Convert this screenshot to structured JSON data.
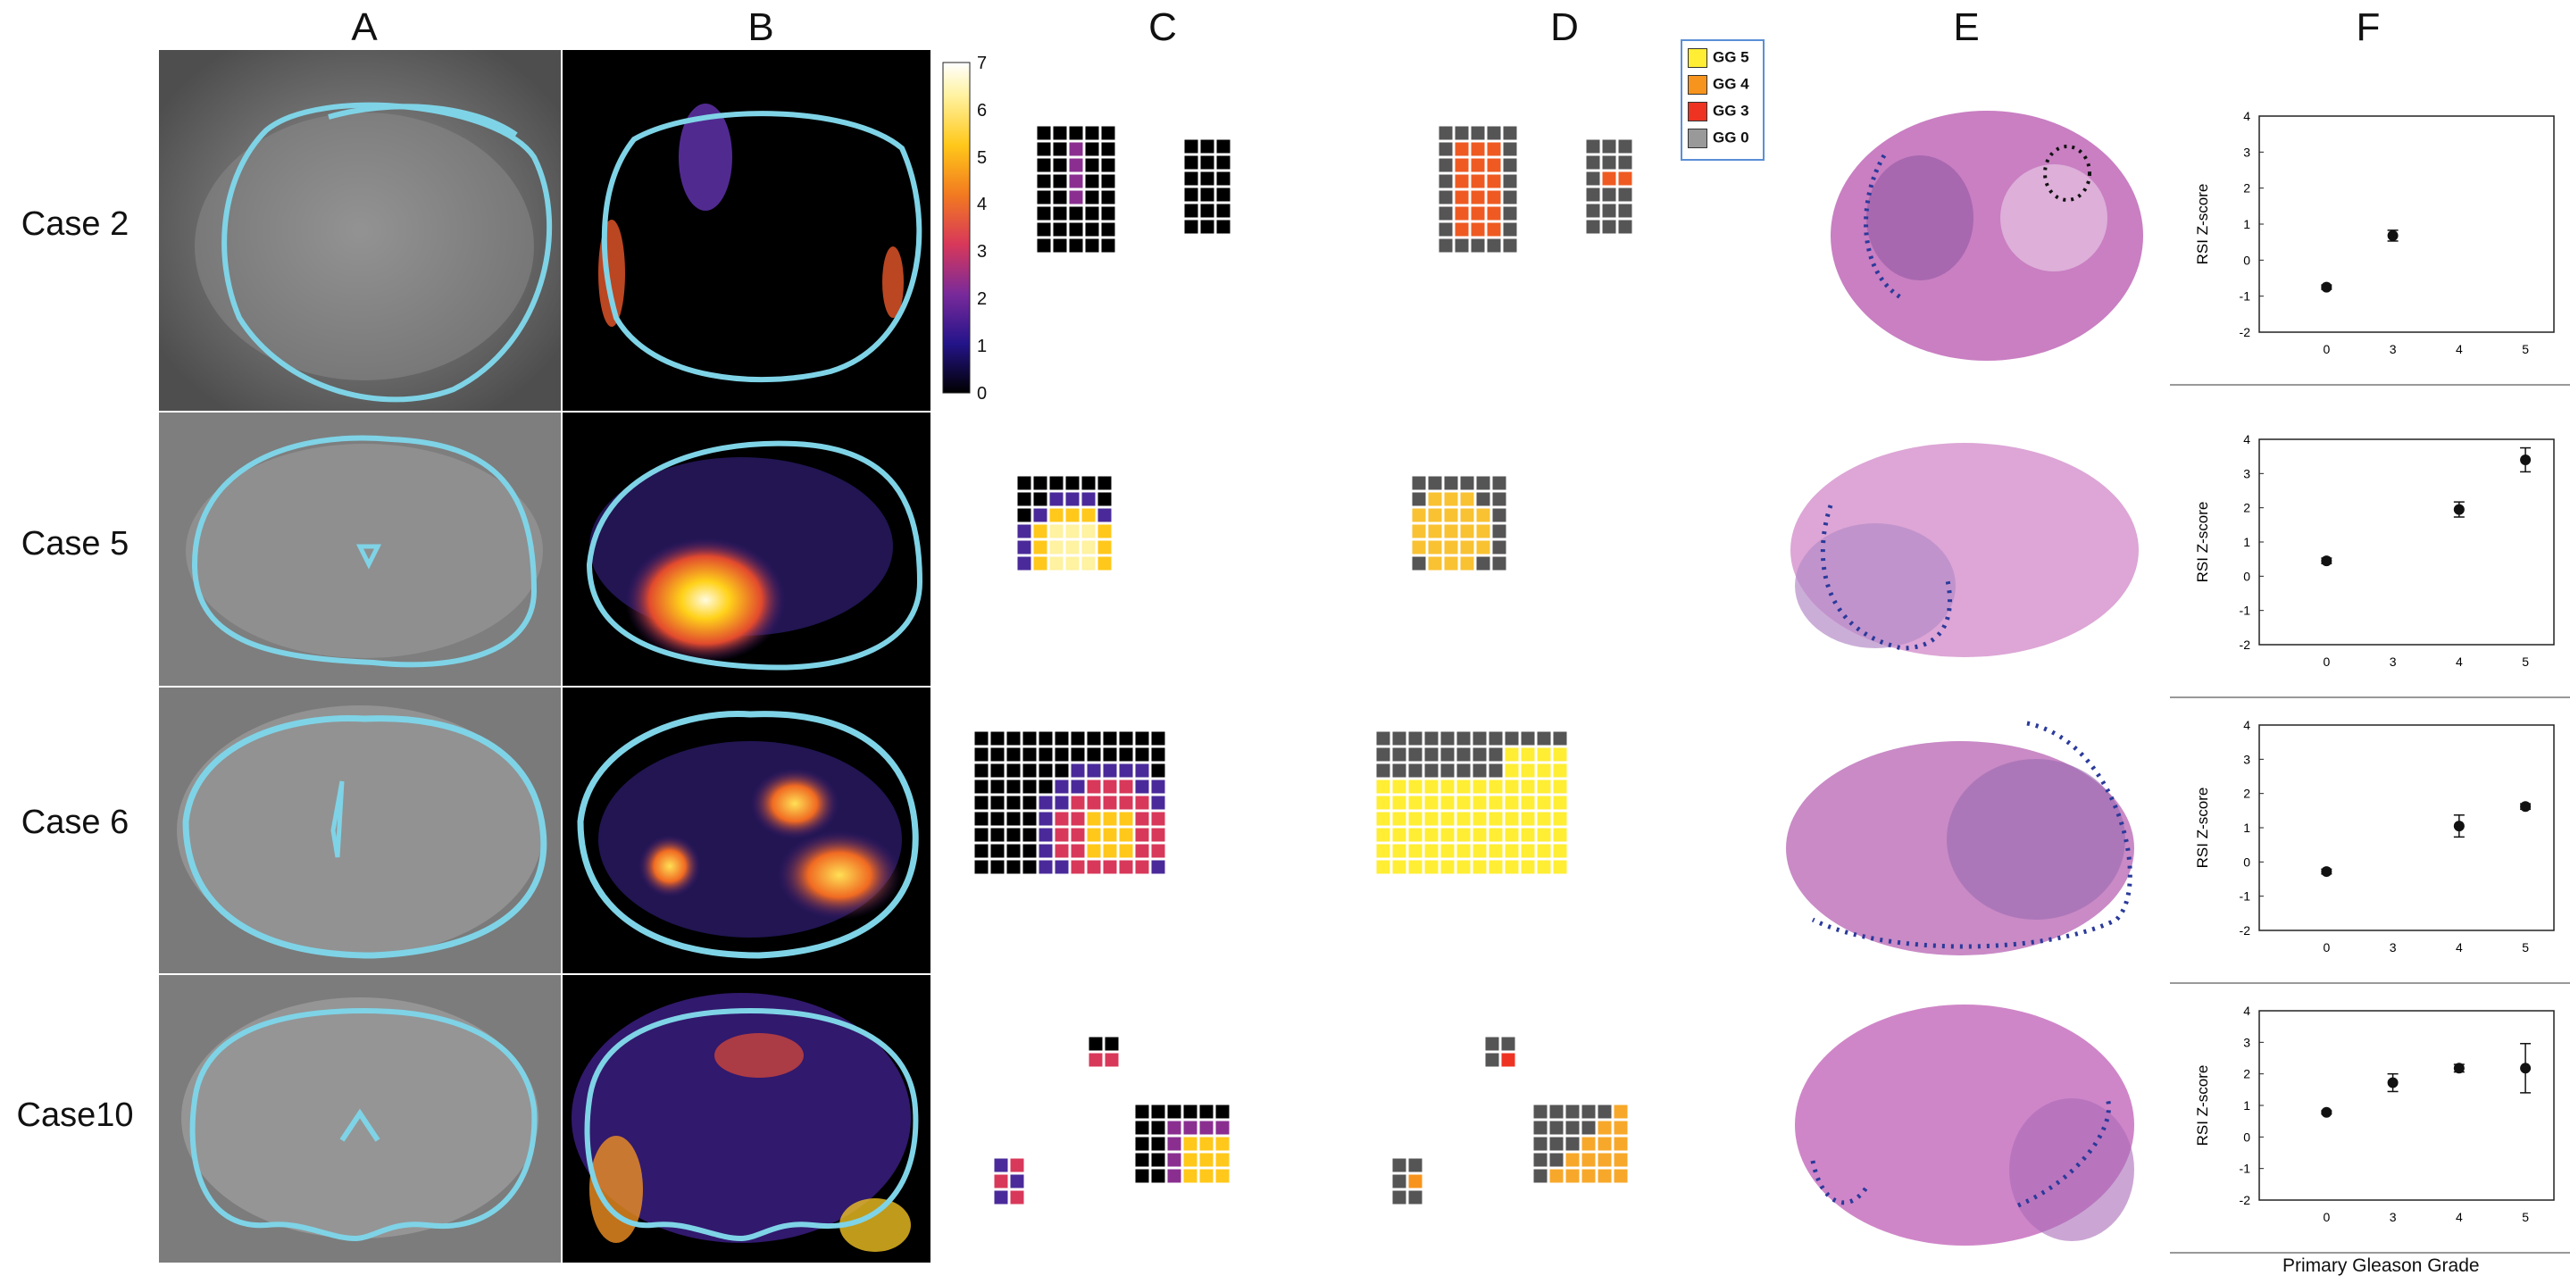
{
  "column_labels": [
    "A",
    "B",
    "C",
    "D",
    "E",
    "F"
  ],
  "rows": [
    {
      "label": "Case 2"
    },
    {
      "label": "Case 5"
    },
    {
      "label": "Case 6"
    },
    {
      "label": "Case10"
    }
  ],
  "colorbar": {
    "ticks": [
      "7",
      "6",
      "5",
      "4",
      "3",
      "2",
      "1",
      "0"
    ],
    "min": 0,
    "max": 7
  },
  "legend": {
    "items": [
      {
        "label": "GG 5",
        "color": "#ffee33"
      },
      {
        "label": "GG 4",
        "color": "#f7941d"
      },
      {
        "label": "GG 3",
        "color": "#ee3322"
      },
      {
        "label": "GG 0",
        "color": "#999999"
      }
    ]
  },
  "colors": {
    "contour": "#7fd3e6",
    "grid_cell_empty": "#555555",
    "tissue_pink": "#d98ad0",
    "tumor_dots": "#2a3a9a"
  },
  "chart_data": [
    {
      "type": "scatter",
      "case": "Case 2",
      "ylabel": "RSI Z-score",
      "xlabel": "",
      "ylim": [
        -2,
        4
      ],
      "xticks": [
        "0",
        "3",
        "4",
        "5"
      ],
      "points": [
        {
          "x": "0",
          "y": -0.75,
          "err": 0.06
        },
        {
          "x": "3",
          "y": 0.68,
          "err": 0.15
        }
      ]
    },
    {
      "type": "scatter",
      "case": "Case 5",
      "ylabel": "RSI Z-score",
      "xlabel": "",
      "ylim": [
        -2,
        4
      ],
      "xticks": [
        "0",
        "3",
        "4",
        "5"
      ],
      "points": [
        {
          "x": "0",
          "y": 0.45,
          "err": 0.08
        },
        {
          "x": "4",
          "y": 1.95,
          "err": 0.22
        },
        {
          "x": "5",
          "y": 3.4,
          "err": 0.35
        }
      ]
    },
    {
      "type": "scatter",
      "case": "Case 6",
      "ylabel": "RSI Z-score",
      "xlabel": "",
      "ylim": [
        -2,
        4
      ],
      "xticks": [
        "0",
        "3",
        "4",
        "5"
      ],
      "points": [
        {
          "x": "0",
          "y": -0.28,
          "err": 0.07
        },
        {
          "x": "4",
          "y": 1.05,
          "err": 0.32
        },
        {
          "x": "5",
          "y": 1.62,
          "err": 0.08
        }
      ]
    },
    {
      "type": "scatter",
      "case": "Case10",
      "ylabel": "RSI Z-score",
      "xlabel": "Primary Gleason Grade",
      "ylim": [
        -2,
        4
      ],
      "xticks": [
        "0",
        "3",
        "4",
        "5"
      ],
      "points": [
        {
          "x": "0",
          "y": 0.78,
          "err": 0.05
        },
        {
          "x": "3",
          "y": 1.72,
          "err": 0.28
        },
        {
          "x": "4",
          "y": 2.18,
          "err": 0.12
        },
        {
          "x": "5",
          "y": 2.18,
          "err": 0.78
        }
      ]
    }
  ],
  "y_ticks": [
    "4",
    "3",
    "2",
    "1",
    "0",
    "-1",
    "-2"
  ],
  "x_axis_title": "Primary Gleason Grade"
}
